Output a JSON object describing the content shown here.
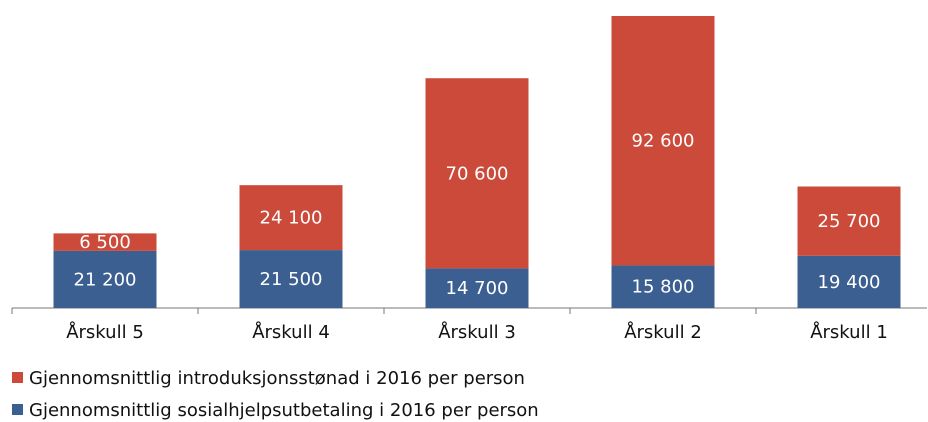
{
  "chart_data": {
    "type": "stacked_bar",
    "categories": [
      "Årskull 5",
      "Årskull 4",
      "Årskull 3",
      "Årskull 2",
      "Årskull 1"
    ],
    "series": [
      {
        "name": "Gjennomsnittlig sosialhjelpsutbetaling i 2016 per person",
        "color": "#3c5f92",
        "values": [
          21200,
          21500,
          14700,
          15800,
          19400
        ],
        "value_labels": [
          "21 200",
          "21 500",
          "14 700",
          "15 800",
          "19 400"
        ]
      },
      {
        "name": "Gjennomsnittlig introduksjonsstønad i 2016 per person",
        "color": "#cb4a39",
        "values": [
          6500,
          24100,
          70600,
          92600,
          25700
        ],
        "value_labels": [
          "6 500",
          "24 100",
          "70 600",
          "92 600",
          "25 700"
        ]
      }
    ]
  }
}
